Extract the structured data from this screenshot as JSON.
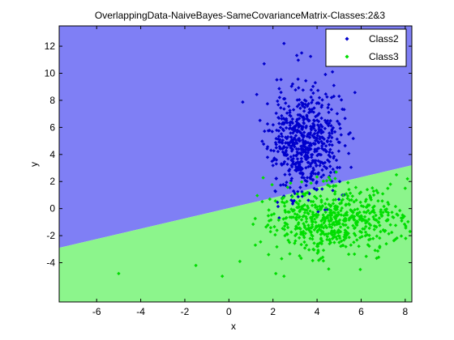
{
  "chart_data": {
    "type": "scatter",
    "title": "OverlappingData-NaiveBayes-SameCovarianceMatrix-Classes:2&3",
    "xlabel": "x",
    "ylabel": "y",
    "xlim": [
      -7.7,
      8.3
    ],
    "ylim": [
      -6.9,
      13.5
    ],
    "xticks": [
      -6,
      -4,
      -2,
      0,
      2,
      4,
      6,
      8
    ],
    "yticks": [
      -4,
      -2,
      0,
      2,
      4,
      6,
      8,
      10,
      12
    ],
    "grid": false,
    "legend_position": "top-right",
    "background_regions": [
      {
        "label_for": "Class2",
        "color": "#7f7ff5"
      },
      {
        "label_for": "Class3",
        "color": "#8cf58c"
      }
    ],
    "decision_boundary": {
      "x": [
        -7.7,
        8.3
      ],
      "y": [
        -2.9,
        3.2
      ]
    },
    "series": [
      {
        "name": "Class2",
        "color": "#0000cc",
        "marker": "diamond",
        "clusters": [
          {
            "cx": 3.4,
            "cy": 5.0,
            "sx": 0.8,
            "sy": 2.0,
            "n": 600,
            "seed": 11
          }
        ],
        "points": [
          [
            2.5,
            12.2
          ],
          [
            3.3,
            11.5
          ],
          [
            1.6,
            10.7
          ],
          [
            4.7,
            10.1
          ],
          [
            5.0,
            8.3
          ],
          [
            5.5,
            5.6
          ]
        ]
      },
      {
        "name": "Class3",
        "color": "#00dd00",
        "marker": "diamond",
        "clusters": [
          {
            "cx": 4.8,
            "cy": -0.8,
            "sx": 1.5,
            "sy": 1.2,
            "n": 600,
            "seed": 29
          }
        ],
        "points": [
          [
            -5.0,
            -4.8
          ],
          [
            -1.5,
            -4.2
          ],
          [
            -0.3,
            -5.0
          ],
          [
            0.5,
            -3.9
          ],
          [
            1.2,
            -2.7
          ],
          [
            1.8,
            -3.4
          ],
          [
            8.1,
            2.2
          ],
          [
            8.0,
            1.5
          ],
          [
            7.6,
            2.5
          ],
          [
            2.5,
            -5.0
          ]
        ]
      }
    ]
  }
}
